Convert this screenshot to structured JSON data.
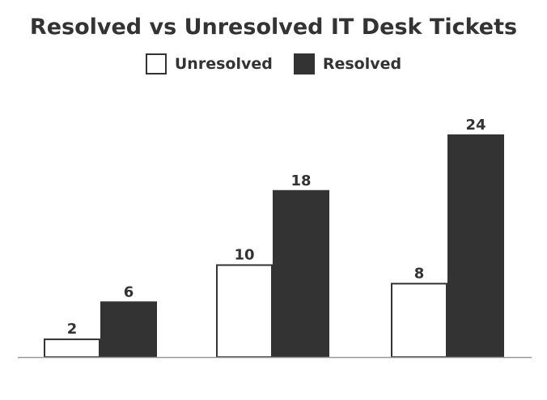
{
  "chart_data": {
    "type": "bar",
    "title": "Resolved vs Unresolved IT Desk Tickets",
    "categories": [
      "",
      "",
      ""
    ],
    "series": [
      {
        "name": "Unresolved",
        "values": [
          2,
          10,
          8
        ],
        "color": "#ffffff",
        "stroke": "#333333"
      },
      {
        "name": "Resolved",
        "values": [
          6,
          18,
          24
        ],
        "color": "#333333",
        "stroke": "#333333"
      }
    ],
    "xlabel": "",
    "ylabel": "",
    "ylim": [
      0,
      24
    ],
    "grid": false,
    "legend_position": "top-center",
    "axis_color": "#999999"
  }
}
